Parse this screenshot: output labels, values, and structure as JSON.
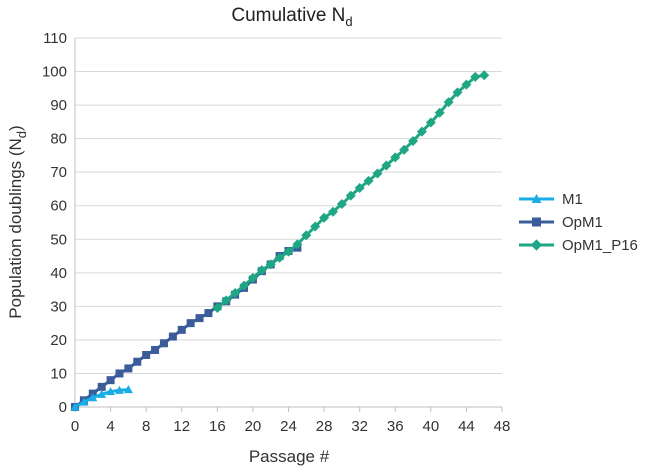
{
  "chart_data": {
    "type": "line",
    "title": "Cumulative N",
    "title_subscript": "d",
    "xlabel": "Passage #",
    "ylabel": "Population doublings (N",
    "ylabel_subscript": "d",
    "ylabel_suffix": ")",
    "xlim": [
      0,
      48
    ],
    "ylim": [
      0,
      110
    ],
    "xticks": [
      0,
      4,
      8,
      12,
      16,
      20,
      24,
      28,
      32,
      36,
      40,
      44,
      48
    ],
    "yticks": [
      0,
      10,
      20,
      30,
      40,
      50,
      60,
      70,
      80,
      90,
      100,
      110
    ],
    "grid": "horizontal",
    "legend_position": "right",
    "series": [
      {
        "name": "M1",
        "color": "#1AACE4",
        "marker": "triangle",
        "x": [
          0,
          1,
          2,
          3,
          4,
          5,
          6
        ],
        "y": [
          0,
          1.5,
          2.8,
          3.8,
          4.6,
          5.0,
          5.2
        ]
      },
      {
        "name": "OpM1",
        "color": "#3A5C99",
        "marker": "square",
        "x": [
          0,
          1,
          2,
          3,
          4,
          5,
          6,
          7,
          8,
          9,
          10,
          11,
          12,
          13,
          14,
          15,
          16,
          17,
          18,
          19,
          20,
          21,
          22,
          23,
          24,
          25
        ],
        "y": [
          0,
          2,
          4,
          6,
          8,
          10,
          11.5,
          13.5,
          15.5,
          17,
          19,
          21,
          23,
          25,
          26.5,
          28,
          30,
          31.5,
          33.5,
          35.5,
          38,
          40.5,
          42.5,
          45,
          46.5,
          47.5
        ]
      },
      {
        "name": "OpM1_P16",
        "color": "#1FA684",
        "marker": "diamond",
        "x": [
          16,
          17,
          18,
          19,
          20,
          21,
          22,
          23,
          24,
          25,
          26,
          27,
          28,
          29,
          30,
          31,
          32,
          33,
          34,
          35,
          36,
          37,
          38,
          39,
          40,
          41,
          42,
          43,
          44,
          45,
          46
        ],
        "y": [
          29.5,
          31.8,
          34,
          36.2,
          38.5,
          40.8,
          42.5,
          44.5,
          46.3,
          48.5,
          51.2,
          53.8,
          56.4,
          58.2,
          60.5,
          63,
          65.3,
          67.4,
          69.6,
          72,
          74.4,
          76.7,
          79.3,
          82.1,
          84.8,
          87.7,
          90.9,
          93.8,
          96.1,
          98.4,
          98.9
        ]
      }
    ]
  }
}
